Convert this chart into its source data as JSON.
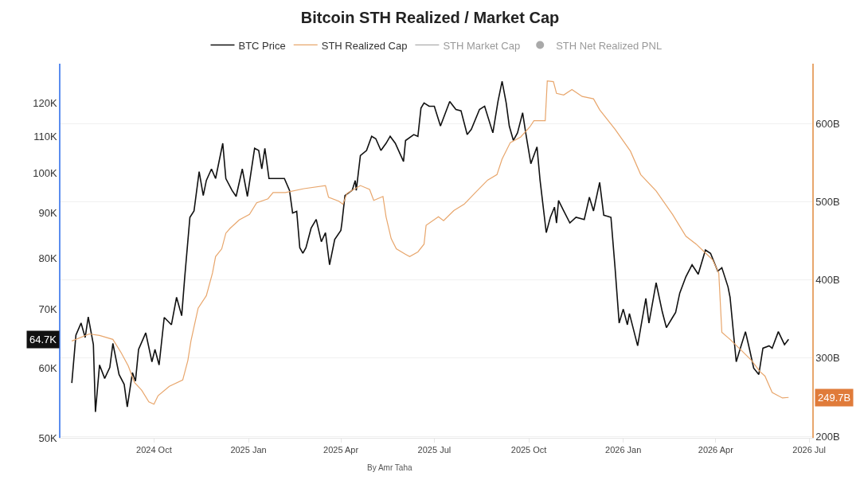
{
  "chart_data": {
    "type": "line",
    "title": "Bitcoin STH Realized / Market Cap",
    "legend": "top",
    "grid": "y",
    "log": "y",
    "xlim": [
      "2024-07-02",
      "2026-07-04"
    ],
    "xticks": [
      {
        "value": "2024-10-01",
        "label": "2024 Oct"
      },
      {
        "value": "2025-01-01",
        "label": "2025 Jan"
      },
      {
        "value": "2025-04-01",
        "label": "2025 Apr"
      },
      {
        "value": "2025-07-01",
        "label": "2025 Jul"
      },
      {
        "value": "2025-10-01",
        "label": "2025 Oct"
      },
      {
        "value": "2026-01-01",
        "label": "2026 Jan"
      },
      {
        "value": "2026-04-01",
        "label": "2026 Apr"
      },
      {
        "value": "2026-07-01",
        "label": "2026 Jul"
      }
    ],
    "ylim": [
      50000,
      133000
    ],
    "yticks": [
      {
        "value": 50000,
        "label": "50K"
      },
      {
        "value": 60000,
        "label": "60K"
      },
      {
        "value": 70000,
        "label": "70K"
      },
      {
        "value": 80000,
        "label": "80K"
      },
      {
        "value": 90000,
        "label": "90K"
      },
      {
        "value": 100000,
        "label": "100K"
      },
      {
        "value": 110000,
        "label": "110K"
      },
      {
        "value": 120000,
        "label": "120K"
      }
    ],
    "y2lim": [
      198,
      677
    ],
    "y2ticks": [
      {
        "value": 200,
        "label": "200B"
      },
      {
        "value": 300,
        "label": "300B"
      },
      {
        "value": 400,
        "label": "400B"
      },
      {
        "value": 500,
        "label": "500B"
      },
      {
        "value": 600,
        "label": "600B"
      }
    ],
    "annotations": [
      "64.7K",
      "249.7B",
      "By Amr Taha"
    ],
    "series": [
      {
        "name": "BTC Price",
        "color": "#111111",
        "x": [
          "2024-07-13",
          "2024-07-17",
          "2024-07-22",
          "2024-07-26",
          "2024-07-29",
          "2024-08-03",
          "2024-08-05",
          "2024-08-09",
          "2024-08-14",
          "2024-08-19",
          "2024-08-22",
          "2024-08-28",
          "2024-09-02",
          "2024-09-05",
          "2024-09-10",
          "2024-09-13",
          "2024-09-16",
          "2024-09-23",
          "2024-09-29",
          "2024-10-02",
          "2024-10-06",
          "2024-10-11",
          "2024-10-18",
          "2024-10-23",
          "2024-10-28",
          "2024-10-31",
          "2024-11-05",
          "2024-11-09",
          "2024-11-14",
          "2024-11-18",
          "2024-11-21",
          "2024-11-26",
          "2024-11-30",
          "2024-12-07",
          "2024-12-10",
          "2024-12-16",
          "2024-12-20",
          "2024-12-26",
          "2024-12-31",
          "2025-01-07",
          "2025-01-11",
          "2025-01-14",
          "2025-01-17",
          "2025-01-21",
          "2025-01-30",
          "2025-02-05",
          "2025-02-10",
          "2025-02-13",
          "2025-02-17",
          "2025-02-20",
          "2025-02-23",
          "2025-02-26",
          "2025-03-03",
          "2025-03-08",
          "2025-03-13",
          "2025-03-17",
          "2025-03-21",
          "2025-03-26",
          "2025-04-01",
          "2025-04-02",
          "2025-04-05",
          "2025-04-12",
          "2025-04-15",
          "2025-04-16",
          "2025-04-20",
          "2025-04-26",
          "2025-05-01",
          "2025-05-05",
          "2025-05-10",
          "2025-05-15",
          "2025-05-19",
          "2025-05-24",
          "2025-06-01",
          "2025-06-03",
          "2025-06-11",
          "2025-06-15",
          "2025-06-18",
          "2025-06-21",
          "2025-06-26",
          "2025-07-01",
          "2025-07-07",
          "2025-07-16",
          "2025-07-22",
          "2025-07-27",
          "2025-08-02",
          "2025-08-06",
          "2025-08-14",
          "2025-08-19",
          "2025-08-27",
          "2025-09-01",
          "2025-09-05",
          "2025-09-09",
          "2025-09-12",
          "2025-09-16",
          "2025-09-20",
          "2025-09-25",
          "2025-09-28",
          "2025-10-03",
          "2025-10-09",
          "2025-10-12",
          "2025-10-18",
          "2025-10-22",
          "2025-10-26",
          "2025-10-28",
          "2025-10-30",
          "2025-11-04",
          "2025-11-10",
          "2025-11-16",
          "2025-11-24",
          "2025-11-29",
          "2025-12-03",
          "2025-12-09",
          "2025-12-13",
          "2025-12-20",
          "2025-12-24",
          "2025-12-28",
          "2026-01-01",
          "2026-01-05",
          "2026-01-07",
          "2026-01-15",
          "2026-01-18",
          "2026-01-23",
          "2026-01-26",
          "2026-02-02",
          "2026-02-08",
          "2026-02-12",
          "2026-02-18",
          "2026-02-21",
          "2026-02-25",
          "2026-03-03",
          "2026-03-09",
          "2026-03-15",
          "2026-03-22",
          "2026-03-27",
          "2026-04-03",
          "2026-04-07",
          "2026-04-13",
          "2026-04-15",
          "2026-04-21",
          "2026-04-25",
          "2026-04-30",
          "2026-05-04",
          "2026-05-08",
          "2026-05-13",
          "2026-05-17",
          "2026-05-23",
          "2026-05-26",
          "2026-06-01",
          "2026-06-07",
          "2026-06-11"
        ],
        "values": [
          57700,
          65400,
          67500,
          65000,
          68600,
          63800,
          53500,
          60500,
          58400,
          60100,
          64000,
          59000,
          57500,
          54200,
          59300,
          58000,
          63000,
          65800,
          61000,
          63000,
          60500,
          68500,
          67200,
          72200,
          68800,
          76200,
          89000,
          90500,
          100300,
          94200,
          98000,
          101000,
          98500,
          108000,
          98500,
          95500,
          94000,
          101000,
          94000,
          106600,
          106000,
          101000,
          106600,
          98500,
          98500,
          98500,
          95500,
          90000,
          90400,
          82200,
          81000,
          82200,
          86500,
          88500,
          83500,
          85500,
          78600,
          84000,
          86000,
          87700,
          94200,
          95500,
          98000,
          95500,
          104600,
          106000,
          110000,
          109300,
          106000,
          108000,
          110000,
          108000,
          103000,
          108800,
          110500,
          110000,
          118400,
          120000,
          119000,
          119000,
          113000,
          120500,
          118000,
          117600,
          110500,
          112000,
          118000,
          119000,
          111000,
          120500,
          127000,
          120000,
          113000,
          108800,
          111000,
          117000,
          111000,
          102400,
          107000,
          98000,
          85500,
          89000,
          91400,
          87700,
          93000,
          90500,
          87700,
          89000,
          88500,
          93800,
          90500,
          97500,
          89500,
          89000,
          78000,
          67500,
          70000,
          67200,
          69200,
          63600,
          66700,
          72000,
          67500,
          75000,
          69500,
          66700,
          68500,
          69400,
          73000,
          76200,
          78600,
          76700,
          81700,
          81000,
          77300,
          78000,
          74200,
          72200,
          61000,
          63200,
          66000,
          63000,
          60000,
          59000,
          63200,
          63600,
          63200,
          66000,
          63800,
          64700
        ]
      },
      {
        "name": "STH Realized Cap",
        "color": "#e8a66c",
        "axis": "y2",
        "x": [
          "2024-07-13",
          "2024-07-30",
          "2024-08-09",
          "2024-08-22",
          "2024-08-30",
          "2024-09-06",
          "2024-09-12",
          "2024-09-19",
          "2024-09-26",
          "2024-10-01",
          "2024-10-05",
          "2024-10-16",
          "2024-10-29",
          "2024-11-03",
          "2024-11-06",
          "2024-11-13",
          "2024-11-21",
          "2024-11-27",
          "2024-11-30",
          "2024-12-06",
          "2024-12-10",
          "2024-12-14",
          "2024-12-23",
          "2025-01-02",
          "2025-01-09",
          "2025-01-20",
          "2025-01-25",
          "2025-02-06",
          "2025-02-24",
          "2025-03-17",
          "2025-03-20",
          "2025-03-30",
          "2025-04-03",
          "2025-04-07",
          "2025-04-20",
          "2025-04-29",
          "2025-05-03",
          "2025-05-12",
          "2025-05-15",
          "2025-05-20",
          "2025-05-25",
          "2025-06-03",
          "2025-06-07",
          "2025-06-15",
          "2025-06-21",
          "2025-06-23",
          "2025-07-05",
          "2025-07-10",
          "2025-07-20",
          "2025-07-30",
          "2025-08-10",
          "2025-08-22",
          "2025-08-31",
          "2025-09-05",
          "2025-09-13",
          "2025-09-23",
          "2025-10-02",
          "2025-10-06",
          "2025-10-17",
          "2025-10-19",
          "2025-10-25",
          "2025-10-28",
          "2025-11-04",
          "2025-11-12",
          "2025-11-22",
          "2025-12-03",
          "2025-12-09",
          "2025-12-24",
          "2026-01-08",
          "2026-01-18",
          "2026-02-02",
          "2026-02-18",
          "2026-03-03",
          "2026-03-13",
          "2026-03-21",
          "2026-03-29",
          "2026-04-04",
          "2026-04-07",
          "2026-04-15",
          "2026-04-26",
          "2026-05-06",
          "2026-05-14",
          "2026-05-19",
          "2026-05-26",
          "2026-06-05",
          "2026-06-11"
        ],
        "values": [
          322,
          331,
          329,
          324,
          307,
          290,
          269,
          259,
          244,
          241,
          252,
          264,
          272,
          297,
          322,
          364,
          380,
          409,
          430,
          440,
          460,
          466,
          477,
          484,
          499,
          504,
          512,
          512,
          517,
          521,
          506,
          501,
          497,
          511,
          521,
          516,
          502,
          507,
          481,
          453,
          440,
          433,
          430,
          436,
          446,
          470,
          481,
          476,
          489,
          497,
          512,
          528,
          535,
          555,
          576,
          583,
          596,
          604,
          604,
          655,
          654,
          639,
          637,
          644,
          635,
          632,
          618,
          593,
          565,
          535,
          514,
          484,
          456,
          446,
          436,
          426,
          409,
          333,
          324,
          310,
          297,
          283,
          277,
          256,
          249,
          249.7
        ]
      },
      {
        "name": "STH Market Cap",
        "color": "#555555",
        "axis": "y2"
      },
      {
        "name": "STH Net Realized PNL",
        "color": "#555555",
        "type": "scatter",
        "marker": "circle"
      }
    ]
  }
}
